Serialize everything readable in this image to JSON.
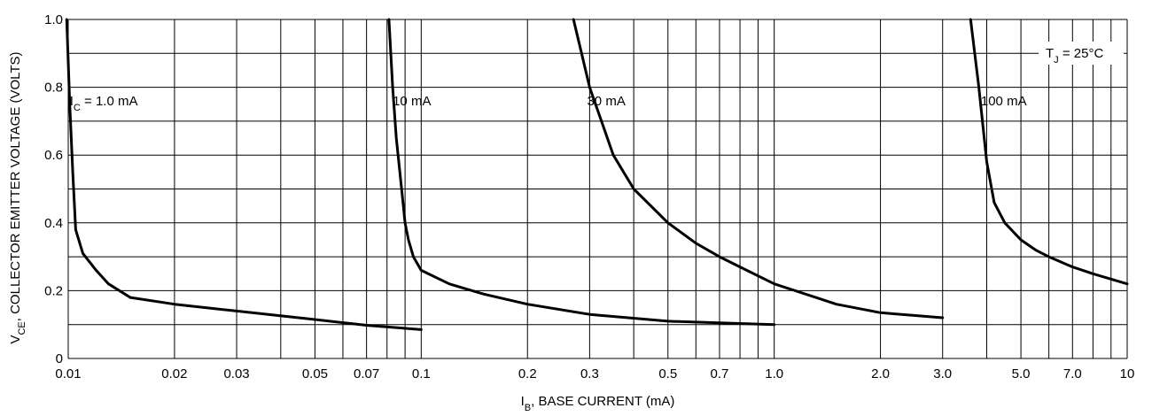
{
  "chart_data": {
    "type": "line",
    "x_scale": "log",
    "xlim": [
      0.01,
      10
    ],
    "ylim": [
      0,
      1.0
    ],
    "grid": true,
    "xlabel": {
      "main": "I",
      "sub": "B",
      "rest": ", BASE CURRENT (mA)"
    },
    "ylabel": {
      "main": "V",
      "sub": "CE",
      "rest": ", COLLECTOR EMITTER VOLTAGE (VOLTS)"
    },
    "x_tick_labels": [
      {
        "value": 0.01,
        "label": "0.01"
      },
      {
        "value": 0.02,
        "label": "0.02"
      },
      {
        "value": 0.03,
        "label": "0.03"
      },
      {
        "value": 0.05,
        "label": "0.05"
      },
      {
        "value": 0.07,
        "label": "0.07"
      },
      {
        "value": 0.1,
        "label": "0.1"
      },
      {
        "value": 0.2,
        "label": "0.2"
      },
      {
        "value": 0.3,
        "label": "0.3"
      },
      {
        "value": 0.5,
        "label": "0.5"
      },
      {
        "value": 0.7,
        "label": "0.7"
      },
      {
        "value": 1.0,
        "label": "1.0"
      },
      {
        "value": 2.0,
        "label": "2.0"
      },
      {
        "value": 3.0,
        "label": "3.0"
      },
      {
        "value": 5.0,
        "label": "5.0"
      },
      {
        "value": 7.0,
        "label": "7.0"
      },
      {
        "value": 10,
        "label": "10"
      }
    ],
    "y_tick_labels": [
      {
        "value": 0,
        "label": "0"
      },
      {
        "value": 0.2,
        "label": "0.2"
      },
      {
        "value": 0.4,
        "label": "0.4"
      },
      {
        "value": 0.6,
        "label": "0.6"
      },
      {
        "value": 0.8,
        "label": "0.8"
      },
      {
        "value": 1.0,
        "label": "1.0"
      }
    ],
    "x_gridlines": [
      0.01,
      0.02,
      0.03,
      0.04,
      0.05,
      0.06,
      0.07,
      0.08,
      0.09,
      0.1,
      0.2,
      0.3,
      0.4,
      0.5,
      0.6,
      0.7,
      0.8,
      0.9,
      1,
      2,
      3,
      4,
      5,
      6,
      7,
      8,
      9,
      10
    ],
    "y_gridlines": [
      0,
      0.1,
      0.2,
      0.3,
      0.4,
      0.5,
      0.6,
      0.7,
      0.8,
      0.9,
      1.0
    ],
    "annotation": {
      "main": "T",
      "sub": "J",
      "rest": " = 25°C",
      "value": 25,
      "position": "top-right"
    },
    "series": [
      {
        "name": "I_C = 1.0 mA",
        "label": {
          "main": "I",
          "sub": "C",
          "rest": " = 1.0 mA",
          "x": 0.0101,
          "y": 0.76
        },
        "x": [
          0.0099,
          0.0101,
          0.0103,
          0.0105,
          0.011,
          0.012,
          0.013,
          0.015,
          0.02,
          0.03,
          0.05,
          0.07,
          0.1
        ],
        "y": [
          1.0,
          0.75,
          0.55,
          0.38,
          0.31,
          0.26,
          0.22,
          0.18,
          0.16,
          0.14,
          0.115,
          0.098,
          0.085
        ]
      },
      {
        "name": "10 mA",
        "label": {
          "main": "10 mA",
          "sub": "",
          "rest": "",
          "x": 0.083,
          "y": 0.76
        },
        "x": [
          0.081,
          0.083,
          0.085,
          0.088,
          0.09,
          0.092,
          0.095,
          0.1,
          0.12,
          0.15,
          0.2,
          0.3,
          0.5,
          0.7,
          1.0
        ],
        "y": [
          1.0,
          0.8,
          0.65,
          0.5,
          0.4,
          0.35,
          0.3,
          0.26,
          0.22,
          0.19,
          0.16,
          0.13,
          0.11,
          0.105,
          0.1
        ]
      },
      {
        "name": "30 mA",
        "label": {
          "main": "30 mA",
          "sub": "",
          "rest": "",
          "x": 0.295,
          "y": 0.76
        },
        "x": [
          0.27,
          0.3,
          0.35,
          0.4,
          0.5,
          0.6,
          0.7,
          0.8,
          1.0,
          1.5,
          2.0,
          3.0
        ],
        "y": [
          1.0,
          0.8,
          0.6,
          0.5,
          0.4,
          0.34,
          0.3,
          0.27,
          0.22,
          0.16,
          0.135,
          0.12
        ]
      },
      {
        "name": "100 mA",
        "label": {
          "main": "100 mA",
          "sub": "",
          "rest": "",
          "x": 3.85,
          "y": 0.76
        },
        "x": [
          3.6,
          3.8,
          4.0,
          4.2,
          4.5,
          5.0,
          5.5,
          6.0,
          7.0,
          8.0,
          10.0
        ],
        "y": [
          1.0,
          0.8,
          0.58,
          0.46,
          0.4,
          0.35,
          0.32,
          0.3,
          0.27,
          0.25,
          0.22
        ]
      }
    ]
  }
}
